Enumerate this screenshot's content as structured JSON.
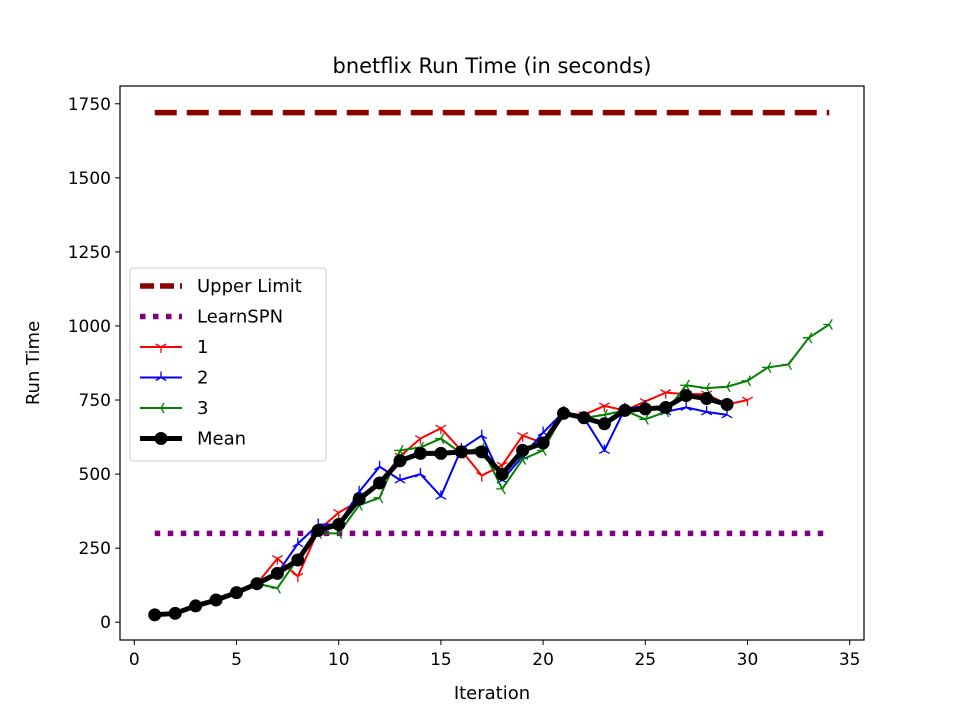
{
  "chart_data": {
    "type": "line",
    "title": "bnetflix Run Time (in seconds)",
    "xlabel": "Iteration",
    "ylabel": "Run Time",
    "xlim": [
      -0.7,
      35.7
    ],
    "ylim": [
      -60,
      1810
    ],
    "xticks": [
      0,
      5,
      10,
      15,
      20,
      25,
      30,
      35
    ],
    "yticks": [
      0,
      250,
      500,
      750,
      1000,
      1250,
      1500,
      1750
    ],
    "grid": false,
    "legend_position": "center-left",
    "series": [
      {
        "name": "Upper Limit",
        "color": "#8b0000",
        "style": "dashed-thick",
        "x": [
          1,
          34
        ],
        "values": [
          1720,
          1720
        ]
      },
      {
        "name": "LearnSPN",
        "color": "#800080",
        "style": "dotted-thick",
        "x": [
          1,
          34
        ],
        "values": [
          300,
          300
        ]
      },
      {
        "name": "1",
        "color": "#ff0000",
        "marker": "tri_down",
        "x": [
          1,
          2,
          3,
          4,
          5,
          6,
          7,
          8,
          9,
          10,
          11,
          12,
          13,
          14,
          15,
          16,
          17,
          18,
          19,
          20,
          21,
          22,
          23,
          24,
          25,
          26,
          27,
          28,
          29,
          30
        ],
        "values": [
          25,
          30,
          55,
          75,
          100,
          130,
          215,
          155,
          310,
          370,
          410,
          470,
          560,
          620,
          655,
          580,
          495,
          530,
          630,
          605,
          705,
          700,
          730,
          715,
          745,
          775,
          770,
          770,
          735,
          750
        ]
      },
      {
        "name": "2",
        "color": "#0000ff",
        "marker": "tri_up",
        "x": [
          1,
          2,
          3,
          4,
          5,
          6,
          7,
          8,
          9,
          10,
          11,
          12,
          13,
          14,
          15,
          16,
          17,
          18,
          19,
          20,
          21,
          22,
          23,
          24,
          25,
          26,
          27,
          28,
          29
        ],
        "values": [
          25,
          30,
          55,
          75,
          100,
          130,
          165,
          265,
          330,
          330,
          440,
          525,
          480,
          500,
          425,
          585,
          630,
          480,
          560,
          640,
          710,
          690,
          580,
          720,
          730,
          710,
          725,
          710,
          700
        ]
      },
      {
        "name": "3",
        "color": "#008000",
        "marker": "tri_left",
        "x": [
          1,
          2,
          3,
          4,
          5,
          6,
          7,
          8,
          9,
          10,
          11,
          12,
          13,
          14,
          15,
          16,
          17,
          18,
          19,
          20,
          21,
          22,
          23,
          24,
          25,
          26,
          27,
          28,
          29,
          30,
          31,
          32,
          33,
          34
        ],
        "values": [
          25,
          30,
          55,
          75,
          100,
          130,
          115,
          215,
          300,
          300,
          395,
          420,
          580,
          590,
          620,
          570,
          590,
          450,
          550,
          580,
          705,
          690,
          700,
          715,
          685,
          710,
          800,
          790,
          795,
          815,
          860,
          870,
          960,
          1005
        ]
      },
      {
        "name": "Mean",
        "color": "#000000",
        "marker": "circle",
        "style": "thick",
        "x": [
          1,
          2,
          3,
          4,
          5,
          6,
          7,
          8,
          9,
          10,
          11,
          12,
          13,
          14,
          15,
          16,
          17,
          18,
          19,
          20,
          21,
          22,
          23,
          24,
          25,
          26,
          27,
          28,
          29
        ],
        "values": [
          25,
          30,
          55,
          75,
          100,
          130,
          165,
          210,
          310,
          330,
          415,
          470,
          545,
          570,
          570,
          575,
          575,
          500,
          580,
          605,
          705,
          690,
          670,
          715,
          720,
          725,
          765,
          755,
          735
        ]
      }
    ]
  }
}
